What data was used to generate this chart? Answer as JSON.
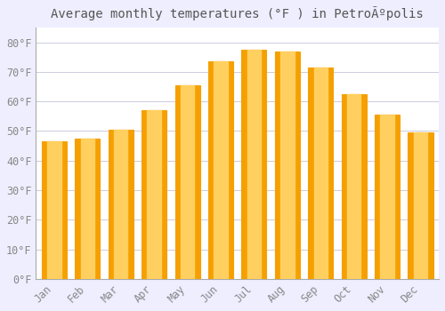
{
  "title": "Average monthly temperatures (°F ) in PetroÃºpolis",
  "months": [
    "Jan",
    "Feb",
    "Mar",
    "Apr",
    "May",
    "Jun",
    "Jul",
    "Aug",
    "Sep",
    "Oct",
    "Nov",
    "Dec"
  ],
  "values": [
    46.5,
    47.5,
    50.5,
    57.0,
    65.5,
    73.5,
    77.5,
    77.0,
    71.5,
    62.5,
    55.5,
    49.5
  ],
  "bar_color_center": "#FFD060",
  "bar_color_edge": "#F5A000",
  "background_color": "#EEEEFF",
  "plot_bg_color": "#FFFFFF",
  "grid_color": "#CCCCDD",
  "ylim": [
    0,
    85
  ],
  "yticks": [
    0,
    10,
    20,
    30,
    40,
    50,
    60,
    70,
    80
  ],
  "ytick_labels": [
    "0°F",
    "10°F",
    "20°F",
    "30°F",
    "40°F",
    "50°F",
    "60°F",
    "70°F",
    "80°F"
  ],
  "title_fontsize": 10,
  "tick_fontsize": 8.5,
  "tick_color": "#888888",
  "spine_color": "#AAAAAA"
}
